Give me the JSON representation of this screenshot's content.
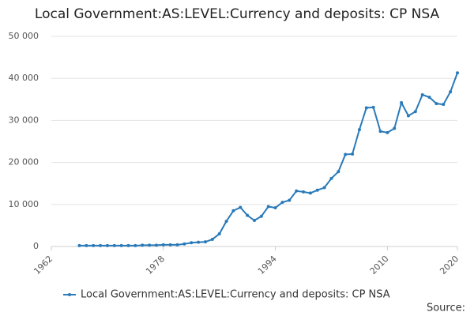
{
  "chart_data": {
    "type": "line",
    "title": "Local Government:AS:LEVEL:Currency and deposits: CP NSA",
    "source": "Source:",
    "x": [
      1966,
      1967,
      1968,
      1969,
      1970,
      1971,
      1972,
      1973,
      1974,
      1975,
      1976,
      1977,
      1978,
      1979,
      1980,
      1981,
      1982,
      1983,
      1984,
      1985,
      1986,
      1987,
      1988,
      1989,
      1990,
      1991,
      1992,
      1993,
      1994,
      1995,
      1996,
      1997,
      1998,
      1999,
      2000,
      2001,
      2002,
      2003,
      2004,
      2005,
      2006,
      2007,
      2008,
      2009,
      2010,
      2011,
      2012,
      2013,
      2014,
      2015,
      2016,
      2017,
      2018,
      2019,
      2020
    ],
    "series": [
      {
        "name": "Local Government:AS:LEVEL:Currency and deposits: CP NSA",
        "color": "#2a7ab9",
        "values": [
          200,
          200,
          200,
          200,
          200,
          200,
          200,
          200,
          200,
          300,
          300,
          300,
          400,
          400,
          400,
          600,
          900,
          1000,
          1100,
          1700,
          3000,
          6000,
          8500,
          9300,
          7400,
          6200,
          7200,
          9500,
          9200,
          10500,
          11000,
          13200,
          13000,
          12700,
          13400,
          14000,
          16200,
          17800,
          21900,
          22000,
          27800,
          33000,
          33100,
          27400,
          27100,
          28100,
          34200,
          31100,
          32100,
          36100,
          35500,
          34000,
          33800,
          36800,
          41300
        ]
      }
    ],
    "xlim": [
      1962,
      2020
    ],
    "xticks": [
      1962,
      1978,
      1994,
      2010,
      2020
    ],
    "ylim": [
      0,
      50000
    ],
    "yticks": [
      0,
      {
        "value": 10000,
        "label": "10 000"
      },
      {
        "value": 20000,
        "label": "20 000"
      },
      {
        "value": 30000,
        "label": "30 000"
      },
      {
        "value": 40000,
        "label": "40 000"
      },
      {
        "value": 50000,
        "label": "50 000"
      }
    ],
    "grid": true
  }
}
